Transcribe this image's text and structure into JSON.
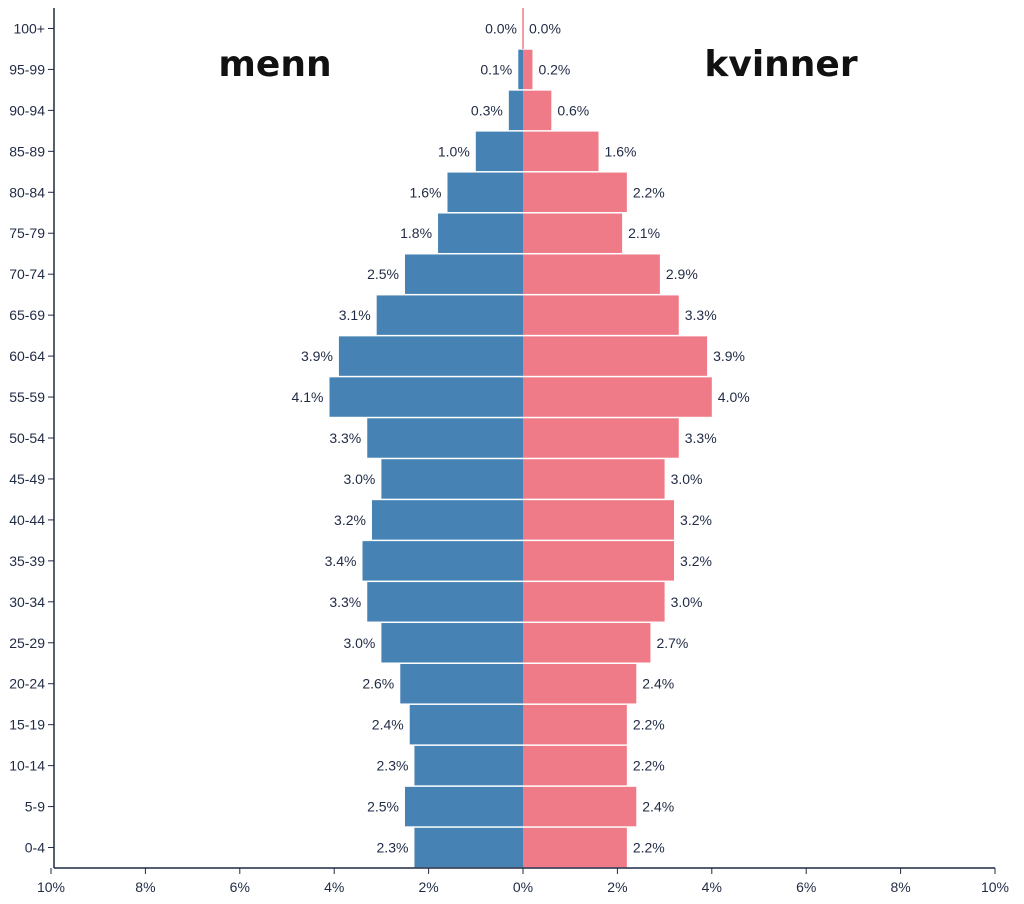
{
  "chart_data": {
    "type": "bar",
    "orientation": "horizontal-pyramid",
    "categories": [
      "0-4",
      "5-9",
      "10-14",
      "15-19",
      "20-24",
      "25-29",
      "30-34",
      "35-39",
      "40-44",
      "45-49",
      "50-54",
      "55-59",
      "60-64",
      "65-69",
      "70-74",
      "75-79",
      "80-84",
      "85-89",
      "90-94",
      "95-99",
      "100+"
    ],
    "series": [
      {
        "name": "menn",
        "side": "left",
        "color": "#4682b4",
        "values": [
          2.3,
          2.5,
          2.3,
          2.4,
          2.6,
          3.0,
          3.3,
          3.4,
          3.2,
          3.0,
          3.3,
          4.1,
          3.9,
          3.1,
          2.5,
          1.8,
          1.6,
          1.0,
          0.3,
          0.1,
          0.0
        ],
        "labels": [
          "2.3%",
          "2.5%",
          "2.3%",
          "2.4%",
          "2.6%",
          "3.0%",
          "3.3%",
          "3.4%",
          "3.2%",
          "3.0%",
          "3.3%",
          "4.1%",
          "3.9%",
          "3.1%",
          "2.5%",
          "1.8%",
          "1.6%",
          "1.0%",
          "0.3%",
          "0.1%",
          "0.0%"
        ]
      },
      {
        "name": "kvinner",
        "side": "right",
        "color": "#f07b88",
        "values": [
          2.2,
          2.4,
          2.2,
          2.2,
          2.4,
          2.7,
          3.0,
          3.2,
          3.2,
          3.0,
          3.3,
          4.0,
          3.9,
          3.3,
          2.9,
          2.1,
          2.2,
          1.6,
          0.6,
          0.2,
          0.0
        ],
        "labels": [
          "2.2%",
          "2.4%",
          "2.2%",
          "2.2%",
          "2.4%",
          "2.7%",
          "3.0%",
          "3.2%",
          "3.2%",
          "3.0%",
          "3.3%",
          "4.0%",
          "3.9%",
          "3.3%",
          "2.9%",
          "2.1%",
          "2.2%",
          "1.6%",
          "0.6%",
          "0.2%",
          "0.0%"
        ]
      }
    ],
    "x_ticks": [
      -10,
      -8,
      -6,
      -4,
      -2,
      0,
      2,
      4,
      6,
      8,
      10
    ],
    "x_tick_labels": [
      "10%",
      "8%",
      "6%",
      "4%",
      "2%",
      "0%",
      "2%",
      "4%",
      "6%",
      "8%",
      "10%"
    ],
    "xlim": [
      -10,
      10
    ],
    "grid": false,
    "legend": "none"
  }
}
